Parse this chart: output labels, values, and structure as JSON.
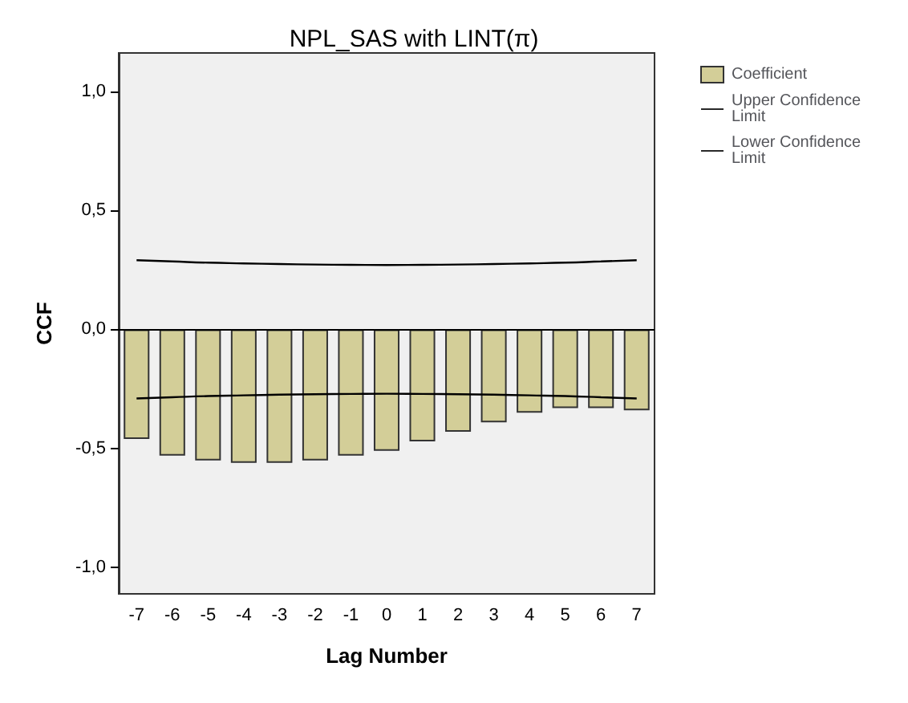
{
  "chart_data": {
    "type": "bar",
    "title": "NPL_SAS with LINT(π)",
    "xlabel": "Lag Number",
    "ylabel": "CCF",
    "categories": [
      "-7",
      "-6",
      "-5",
      "-4",
      "-3",
      "-2",
      "-1",
      "0",
      "1",
      "2",
      "3",
      "4",
      "5",
      "6",
      "7"
    ],
    "series": [
      {
        "name": "Coefficient",
        "color": "#d3ce98",
        "values": [
          -0.46,
          -0.53,
          -0.55,
          -0.56,
          -0.56,
          -0.55,
          -0.53,
          -0.51,
          -0.47,
          -0.43,
          -0.39,
          -0.35,
          -0.33,
          -0.33,
          -0.34
        ]
      },
      {
        "name": "Upper Confidence Limit",
        "type": "line",
        "color": "#000000",
        "values": [
          0.29,
          0.285,
          0.28,
          0.277,
          0.274,
          0.272,
          0.271,
          0.27,
          0.271,
          0.272,
          0.274,
          0.277,
          0.28,
          0.285,
          0.29
        ]
      },
      {
        "name": "Lower Confidence Limit",
        "type": "line",
        "color": "#000000",
        "values": [
          -0.29,
          -0.285,
          -0.28,
          -0.277,
          -0.274,
          -0.272,
          -0.271,
          -0.27,
          -0.271,
          -0.272,
          -0.274,
          -0.277,
          -0.28,
          -0.285,
          -0.29
        ]
      }
    ],
    "ylim": [
      -1.11,
      1.16
    ],
    "yticks": [
      {
        "value": -1,
        "label": "-1,0"
      },
      {
        "value": -0.5,
        "label": "-0,5"
      },
      {
        "value": 0,
        "label": "0,0"
      },
      {
        "value": 0.5,
        "label": "0,5"
      },
      {
        "value": 1,
        "label": "1,0"
      }
    ],
    "ref_lines": [
      {
        "axis": "y",
        "value": 0,
        "color": "#000000"
      }
    ],
    "grid": false,
    "legend": "top right",
    "marker": "none",
    "line_style": "solid"
  }
}
